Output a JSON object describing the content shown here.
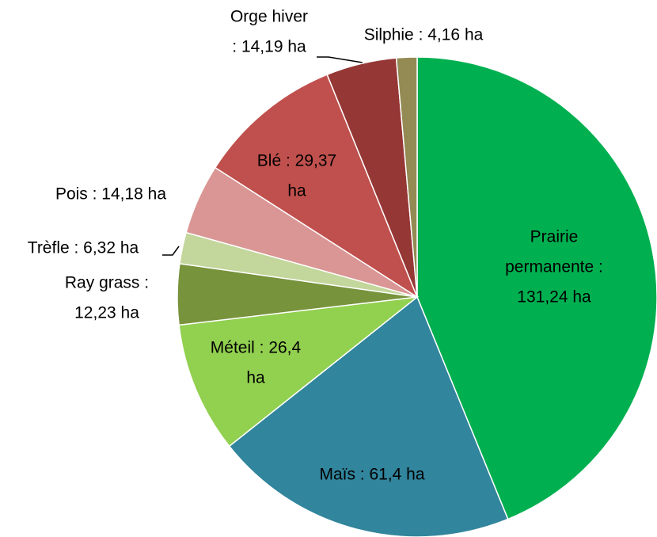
{
  "chart_data": {
    "type": "pie",
    "values": [
      131.24,
      61.4,
      26.4,
      12.23,
      6.32,
      14.18,
      29.37,
      14.19,
      4.16
    ],
    "value_labels": [
      [
        "Prairie",
        "permanente :",
        "131,24 ha"
      ],
      [
        "Maïs : 61,4 ha"
      ],
      [
        "Méteil : 26,4",
        "ha"
      ],
      [
        "Ray grass :",
        "12,23 ha"
      ],
      [
        "Trèfle : 6,32 ha"
      ],
      [
        "Pois  : 14,18 ha"
      ],
      [
        "Blé : 29,37",
        "ha"
      ],
      [
        "Orge hiver",
        ": 14,19 ha"
      ],
      [
        "Silphie :  4,16 ha"
      ]
    ],
    "colors": [
      "#00b050",
      "#31859c",
      "#92d050",
      "#77933c",
      "#c3d69b",
      "#d99694",
      "#c0504d",
      "#953735",
      "#948a54"
    ]
  }
}
